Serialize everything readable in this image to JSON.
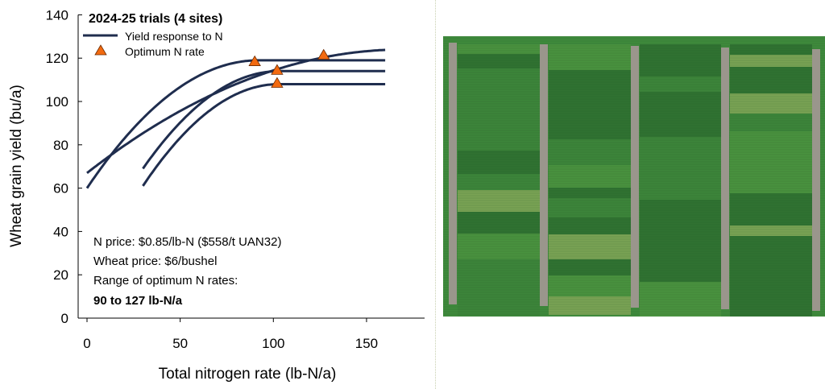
{
  "chart_data": {
    "type": "line",
    "title": "2024-25 trials (4 sites)",
    "xlabel": "Total nitrogen rate (lb-N/a)",
    "ylabel": "Wheat grain yield (bu/a)",
    "xlim": [
      -5,
      180
    ],
    "ylim": [
      0,
      140
    ],
    "xticks": [
      0,
      50,
      100,
      150
    ],
    "yticks": [
      0,
      20,
      40,
      60,
      80,
      100,
      120,
      140
    ],
    "grid": false,
    "legend_position": "top-left",
    "legend": [
      {
        "label": "Yield response to N",
        "marker": "line"
      },
      {
        "label": "Optimum N rate",
        "marker": "triangle"
      }
    ],
    "colors": {
      "curve": "#1f2d4e",
      "marker": "#f26a10",
      "marker_edge": "#6b2a00"
    },
    "curves": [
      {
        "x_start": 0,
        "x_end": 160,
        "y_start": 60,
        "plateau": 119,
        "x_plateau": 92
      },
      {
        "x_start": 0,
        "x_end": 160,
        "y_start": 67,
        "plateau": 124,
        "x_plateau": 170
      },
      {
        "x_start": 30,
        "x_end": 160,
        "y_start": 69,
        "plateau": 114,
        "x_plateau": 103
      },
      {
        "x_start": 30,
        "x_end": 160,
        "y_start": 61,
        "plateau": 108,
        "x_plateau": 103
      }
    ],
    "optimum_points": [
      {
        "x": 90,
        "y": 118
      },
      {
        "x": 102,
        "y": 114
      },
      {
        "x": 102,
        "y": 108
      },
      {
        "x": 127,
        "y": 121
      }
    ],
    "annotations": [
      {
        "text": "N price: $0.85/lb-N ($558/t UAN32)",
        "bold": false
      },
      {
        "text": "Wheat price: $6/bushel",
        "bold": false
      },
      {
        "text": "Range of optimum N rates:",
        "bold": false
      },
      {
        "text": "90 to 127 lb-N/a",
        "bold": true
      }
    ]
  },
  "photo": {
    "colors": {
      "crop": "#3f8a3c",
      "alley": "#9a968c",
      "stressed": "#8fa858"
    }
  }
}
